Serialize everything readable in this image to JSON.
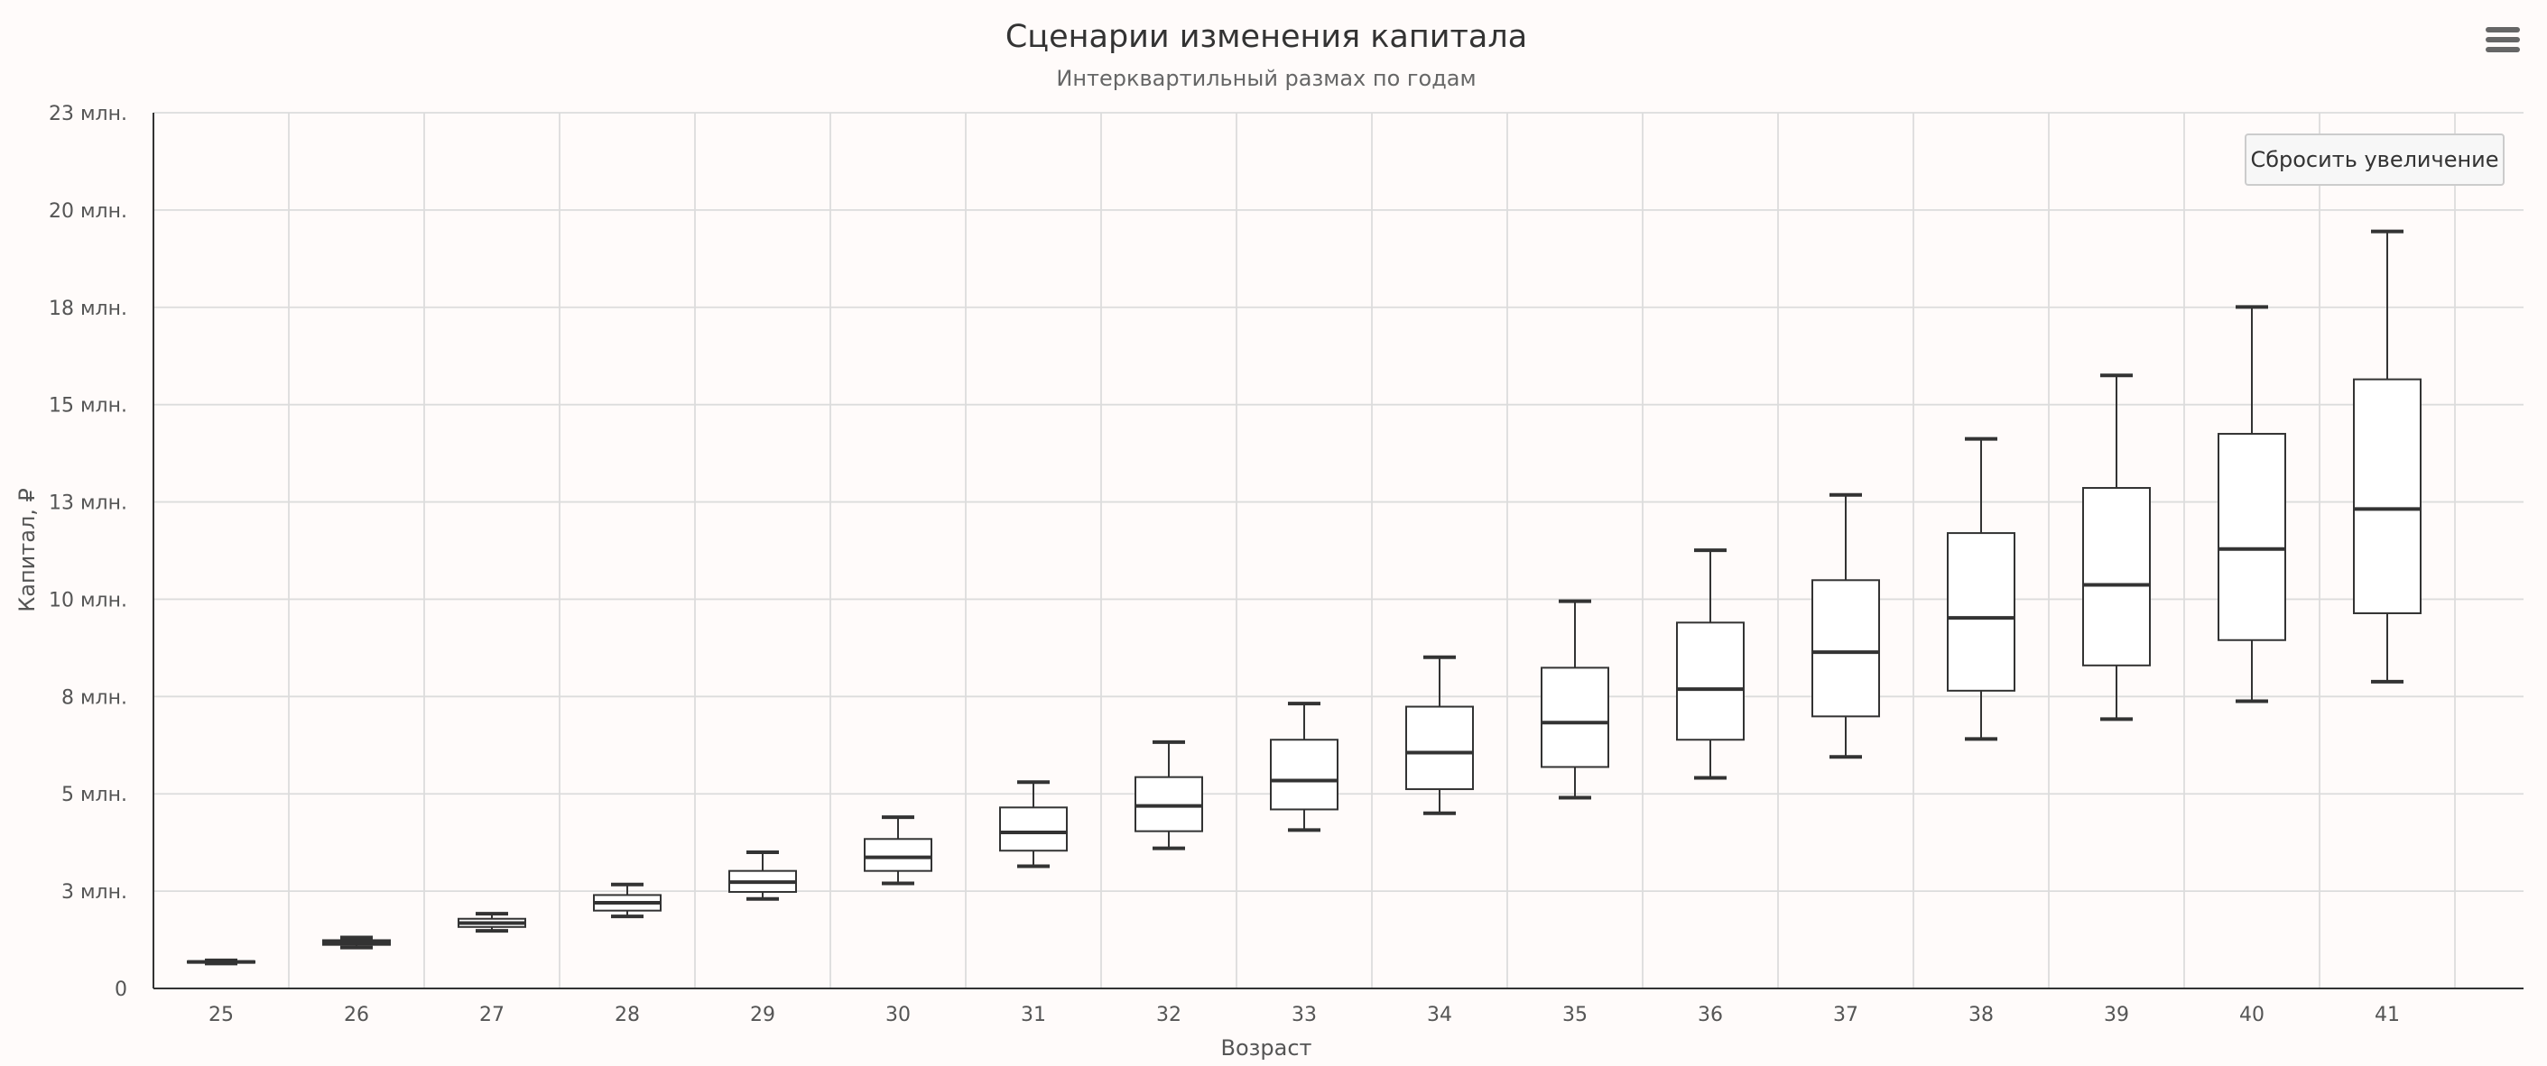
{
  "chart_data": {
    "type": "boxplot",
    "title": "Сценарии изменения капитала",
    "subtitle": "Интерквартильный размах по годам",
    "xlabel": "Возраст",
    "ylabel": "Капитал, ₽",
    "categories": [
      "25",
      "26",
      "27",
      "28",
      "29",
      "30",
      "31",
      "32",
      "33",
      "34",
      "35",
      "36",
      "37",
      "38",
      "39",
      "40",
      "41"
    ],
    "y_ticks": [
      {
        "value": 0,
        "label": "0"
      },
      {
        "value": 2500000,
        "label": "3 млн."
      },
      {
        "value": 5000000,
        "label": "5 млн."
      },
      {
        "value": 7500000,
        "label": "8 млн."
      },
      {
        "value": 10000000,
        "label": "10 млн."
      },
      {
        "value": 12500000,
        "label": "13 млн."
      },
      {
        "value": 15000000,
        "label": "15 млн."
      },
      {
        "value": 17500000,
        "label": "18 млн."
      },
      {
        "value": 20000000,
        "label": "20 млн."
      },
      {
        "value": 22500000,
        "label": "23 млн."
      }
    ],
    "ylim": [
      0,
      22500000
    ],
    "grid": true,
    "legend": false,
    "boxes": [
      {
        "low": 640000,
        "q1": 660000,
        "median": 680000,
        "q3": 700000,
        "high": 720000
      },
      {
        "low": 1050000,
        "q1": 1120000,
        "median": 1180000,
        "q3": 1240000,
        "high": 1310000
      },
      {
        "low": 1480000,
        "q1": 1580000,
        "median": 1680000,
        "q3": 1790000,
        "high": 1920000
      },
      {
        "low": 1850000,
        "q1": 2000000,
        "median": 2200000,
        "q3": 2400000,
        "high": 2670000
      },
      {
        "low": 2300000,
        "q1": 2480000,
        "median": 2730000,
        "q3": 3020000,
        "high": 3500000
      },
      {
        "low": 2700000,
        "q1": 3020000,
        "median": 3370000,
        "q3": 3840000,
        "high": 4400000
      },
      {
        "low": 3140000,
        "q1": 3540000,
        "median": 4010000,
        "q3": 4650000,
        "high": 5300000
      },
      {
        "low": 3600000,
        "q1": 4040000,
        "median": 4690000,
        "q3": 5430000,
        "high": 6330000
      },
      {
        "low": 4070000,
        "q1": 4600000,
        "median": 5340000,
        "q3": 6390000,
        "high": 7320000
      },
      {
        "low": 4500000,
        "q1": 5120000,
        "median": 6060000,
        "q3": 7240000,
        "high": 8510000
      },
      {
        "low": 4900000,
        "q1": 5690000,
        "median": 6830000,
        "q3": 8240000,
        "high": 9950000
      },
      {
        "low": 5410000,
        "q1": 6390000,
        "median": 7690000,
        "q3": 9400000,
        "high": 11260000
      },
      {
        "low": 5950000,
        "q1": 6990000,
        "median": 8640000,
        "q3": 10490000,
        "high": 12680000
      },
      {
        "low": 6410000,
        "q1": 7650000,
        "median": 9520000,
        "q3": 11700000,
        "high": 14120000
      },
      {
        "low": 6920000,
        "q1": 8300000,
        "median": 10370000,
        "q3": 12860000,
        "high": 15750000
      },
      {
        "low": 7380000,
        "q1": 8950000,
        "median": 11290000,
        "q3": 14250000,
        "high": 17510000
      },
      {
        "low": 7880000,
        "q1": 9640000,
        "median": 12320000,
        "q3": 15650000,
        "high": 19450000
      }
    ]
  },
  "ui": {
    "reset_zoom_label": "Сбросить увеличение",
    "menu_icon": "hamburger-menu-icon"
  }
}
